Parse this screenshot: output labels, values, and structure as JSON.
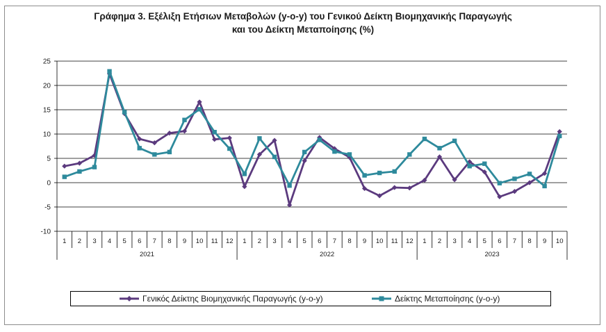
{
  "chart_data": {
    "type": "line",
    "title_line1": "Γράφημα 3. Εξέλιξη Ετήσιων Μεταβολών (y-o-y) του Γενικού Δείκτη Βιομηχανικής Παραγωγής",
    "title_line2": "και του Δείκτη Μεταποίησης (%)",
    "ylim": [
      -10,
      25
    ],
    "yticks": [
      "25",
      "20",
      "15",
      "10",
      "5",
      "0",
      "-5",
      "-10"
    ],
    "ytick_values": [
      25,
      20,
      15,
      10,
      5,
      0,
      -5,
      -10
    ],
    "grid": "horizontal",
    "legend_position": "bottom",
    "months": [
      "1",
      "2",
      "3",
      "4",
      "5",
      "6",
      "7",
      "8",
      "9",
      "10",
      "11",
      "12",
      "1",
      "2",
      "3",
      "4",
      "5",
      "6",
      "7",
      "8",
      "9",
      "10",
      "11",
      "12",
      "1",
      "2",
      "3",
      "4",
      "5",
      "6",
      "7",
      "8",
      "9",
      "10"
    ],
    "years": [
      {
        "label": "2021",
        "count": 12
      },
      {
        "label": "2022",
        "count": 12
      },
      {
        "label": "2023",
        "count": 10
      }
    ],
    "series": [
      {
        "name": "Γενικός Δείκτης Βιομηχανικής Παραγωγής (y-o-y)",
        "color": "#5b3a7e",
        "marker": "diamond",
        "values": [
          3.4,
          4.0,
          5.6,
          22.4,
          14.2,
          9.0,
          8.2,
          10.2,
          10.6,
          16.6,
          8.9,
          9.2,
          -0.8,
          5.8,
          8.7,
          -4.6,
          4.5,
          9.3,
          7.0,
          5.2,
          -1.2,
          -2.7,
          -1.0,
          -1.1,
          0.5,
          5.3,
          0.6,
          4.3,
          2.2,
          -2.9,
          -1.8,
          0.0,
          1.9,
          10.5
        ]
      },
      {
        "name": "Δείκτης Μεταποίησης (y-o-y)",
        "color": "#2e8a9c",
        "marker": "square",
        "values": [
          1.2,
          2.3,
          3.2,
          22.9,
          14.5,
          7.1,
          5.8,
          6.3,
          12.9,
          15.1,
          10.4,
          7.0,
          1.8,
          9.1,
          5.3,
          -0.6,
          6.3,
          8.8,
          6.4,
          5.8,
          1.5,
          2.0,
          2.3,
          5.8,
          9.0,
          7.1,
          8.6,
          3.4,
          3.9,
          -0.1,
          0.8,
          1.8,
          -0.7,
          9.6
        ]
      }
    ]
  }
}
